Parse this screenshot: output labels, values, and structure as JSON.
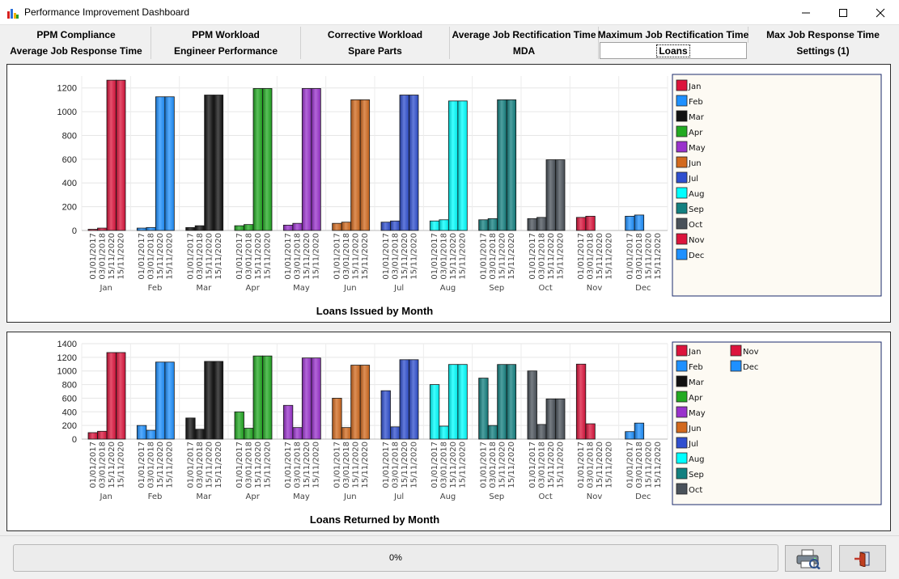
{
  "window": {
    "title": "Performance Improvement Dashboard"
  },
  "tabs": {
    "row1": [
      "PPM Compliance",
      "PPM Workload",
      "Corrective Workload",
      "Average Job Rectification Time",
      "Maximum Job Rectification Time",
      "Max Job Response Time"
    ],
    "row2": [
      "Average Job Response Time",
      "Engineer Performance",
      "Spare Parts",
      "MDA",
      "Loans",
      "Settings (1)"
    ],
    "selected": "Loans"
  },
  "status": {
    "progress_text": "0%"
  },
  "buttons": {
    "print_icon": "printer-icon",
    "exit_icon": "exit-door-icon"
  },
  "month_colors": {
    "Jan": "#dc143c",
    "Feb": "#1e90ff",
    "Mar": "#111111",
    "Apr": "#22aa22",
    "May": "#9932cc",
    "Jun": "#d2691e",
    "Jul": "#2f4fcf",
    "Aug": "#00ffff",
    "Sep": "#138080",
    "Oct": "#4a525a",
    "Nov": "#dc143c",
    "Dec": "#1e90ff"
  },
  "chart_data": [
    {
      "type": "bar",
      "title": "Loans Issued by Month",
      "categories": [
        "Jan",
        "Feb",
        "Mar",
        "Apr",
        "May",
        "Jun",
        "Jul",
        "Aug",
        "Sep",
        "Oct",
        "Nov",
        "Dec"
      ],
      "subcategories": [
        "01/01/2017",
        "03/01/2018",
        "15/11/2020",
        "15/11/2020"
      ],
      "values": [
        [
          10,
          20,
          1265,
          1265
        ],
        [
          20,
          25,
          1125,
          1125
        ],
        [
          25,
          40,
          1140,
          1140
        ],
        [
          40,
          50,
          1195,
          1195
        ],
        [
          45,
          60,
          1195,
          1195
        ],
        [
          60,
          70,
          1100,
          1100
        ],
        [
          70,
          80,
          1140,
          1140
        ],
        [
          80,
          90,
          1090,
          1090
        ],
        [
          90,
          100,
          1100,
          1100
        ],
        [
          100,
          110,
          595,
          595
        ],
        [
          110,
          120,
          0,
          0
        ],
        [
          120,
          130,
          0,
          0
        ]
      ],
      "y_ticks": [
        0,
        200,
        400,
        600,
        800,
        1000,
        1200
      ],
      "ylim": [
        0,
        1300
      ],
      "grid": true,
      "legend": {
        "placement": "right",
        "entries": [
          "Jan",
          "Feb",
          "Mar",
          "Apr",
          "May",
          "Jun",
          "Jul",
          "Aug",
          "Sep",
          "Oct",
          "Nov",
          "Dec"
        ]
      }
    },
    {
      "type": "bar",
      "title": "Loans Returned by Month",
      "categories": [
        "Jan",
        "Feb",
        "Mar",
        "Apr",
        "May",
        "Jun",
        "Jul",
        "Aug",
        "Sep",
        "Oct",
        "Nov",
        "Dec"
      ],
      "subcategories": [
        "01/01/2017",
        "03/01/2018",
        "15/11/2020",
        "15/11/2020"
      ],
      "values": [
        [
          95,
          115,
          1270,
          1270
        ],
        [
          200,
          130,
          1130,
          1130
        ],
        [
          310,
          145,
          1140,
          1140
        ],
        [
          400,
          160,
          1220,
          1220
        ],
        [
          495,
          170,
          1190,
          1190
        ],
        [
          600,
          170,
          1085,
          1085
        ],
        [
          710,
          180,
          1165,
          1165
        ],
        [
          800,
          190,
          1095,
          1095
        ],
        [
          895,
          200,
          1095,
          1095
        ],
        [
          1000,
          215,
          590,
          590
        ],
        [
          1100,
          225,
          0,
          0
        ],
        [
          110,
          235,
          0,
          0
        ]
      ],
      "y_ticks": [
        0,
        200,
        400,
        600,
        800,
        1000,
        1200,
        1400
      ],
      "ylim": [
        0,
        1400
      ],
      "grid": true,
      "legend": {
        "placement": "right",
        "entries": [
          "Jan",
          "Feb",
          "Mar",
          "Apr",
          "May",
          "Jun",
          "Jul",
          "Aug",
          "Sep",
          "Oct",
          "Nov",
          "Dec"
        ]
      }
    }
  ]
}
